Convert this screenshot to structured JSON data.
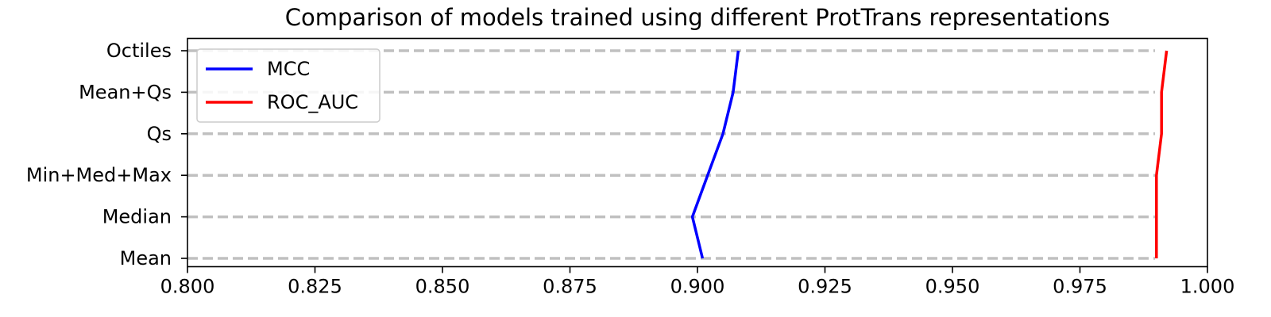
{
  "chart_data": {
    "type": "line",
    "orientation": "horizontal",
    "title": "Comparison of models trained using different ProtTrans representations",
    "xlabel": "",
    "ylabel": "",
    "categories": [
      "Mean",
      "Median",
      "Min+Med+Max",
      "Qs",
      "Mean+Qs",
      "Octiles"
    ],
    "xlim": [
      0.8,
      1.0
    ],
    "xticks": [
      "0.800",
      "0.825",
      "0.850",
      "0.875",
      "0.900",
      "0.925",
      "0.950",
      "0.975",
      "1.000"
    ],
    "xtick_values": [
      0.8,
      0.825,
      0.85,
      0.875,
      0.9,
      0.925,
      0.95,
      0.975,
      1.0
    ],
    "grid": "horizontal dashed",
    "legend_position": "top-left",
    "series": [
      {
        "name": "MCC",
        "color": "#0000ff",
        "values": [
          0.901,
          0.899,
          0.902,
          0.905,
          0.907,
          0.908
        ]
      },
      {
        "name": "ROC_AUC",
        "color": "#ff0000",
        "values": [
          0.99,
          0.99,
          0.99,
          0.991,
          0.991,
          0.992
        ]
      }
    ]
  }
}
